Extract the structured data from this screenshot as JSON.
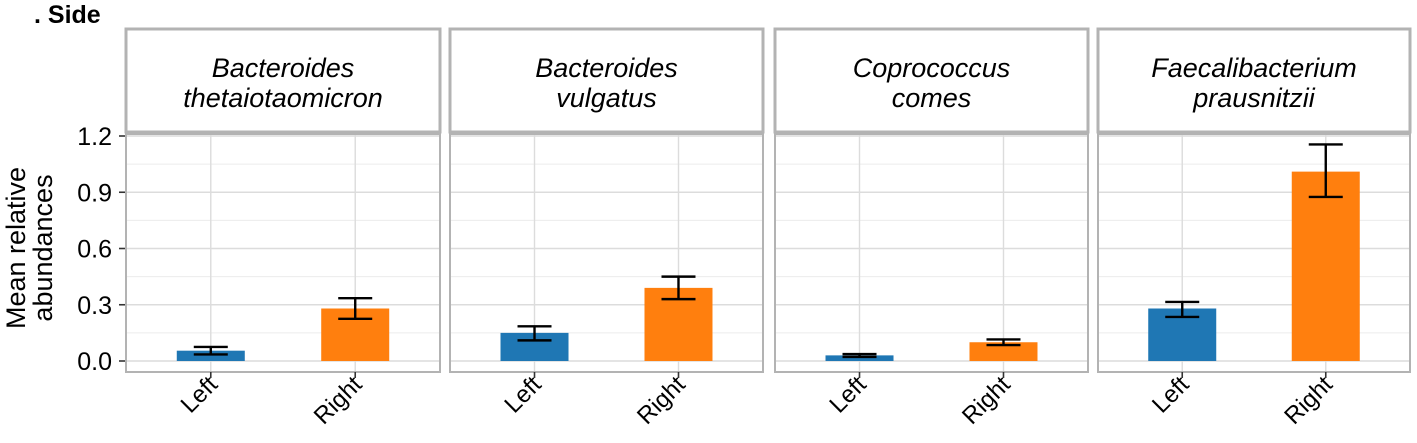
{
  "panel_title": ". Side",
  "chart_data": {
    "type": "bar",
    "ylabel": "Mean relative abundances",
    "ylim": [
      0,
      1.2
    ],
    "yticks": [
      "0.0",
      "0.3",
      "0.6",
      "0.9",
      "1.2"
    ],
    "categories": [
      "Left",
      "Right"
    ],
    "colors": {
      "Left": "#1f77b4",
      "Right": "#ff7f0e"
    },
    "grid": true,
    "facets": [
      {
        "strip": [
          "Bacteroides",
          "thetaiotaomicron"
        ],
        "values": [
          0.055,
          0.28
        ],
        "err_low": [
          0.035,
          0.225
        ],
        "err_high": [
          0.075,
          0.335
        ]
      },
      {
        "strip": [
          "Bacteroides",
          "vulgatus"
        ],
        "values": [
          0.15,
          0.39
        ],
        "err_low": [
          0.11,
          0.33
        ],
        "err_high": [
          0.185,
          0.45
        ]
      },
      {
        "strip": [
          "Coprococcus",
          "comes"
        ],
        "values": [
          0.03,
          0.1
        ],
        "err_low": [
          0.022,
          0.085
        ],
        "err_high": [
          0.037,
          0.115
        ]
      },
      {
        "strip": [
          "Faecalibacterium",
          "prausnitzii"
        ],
        "values": [
          0.28,
          1.01
        ],
        "err_low": [
          0.235,
          0.875
        ],
        "err_high": [
          0.315,
          1.155
        ]
      }
    ]
  }
}
